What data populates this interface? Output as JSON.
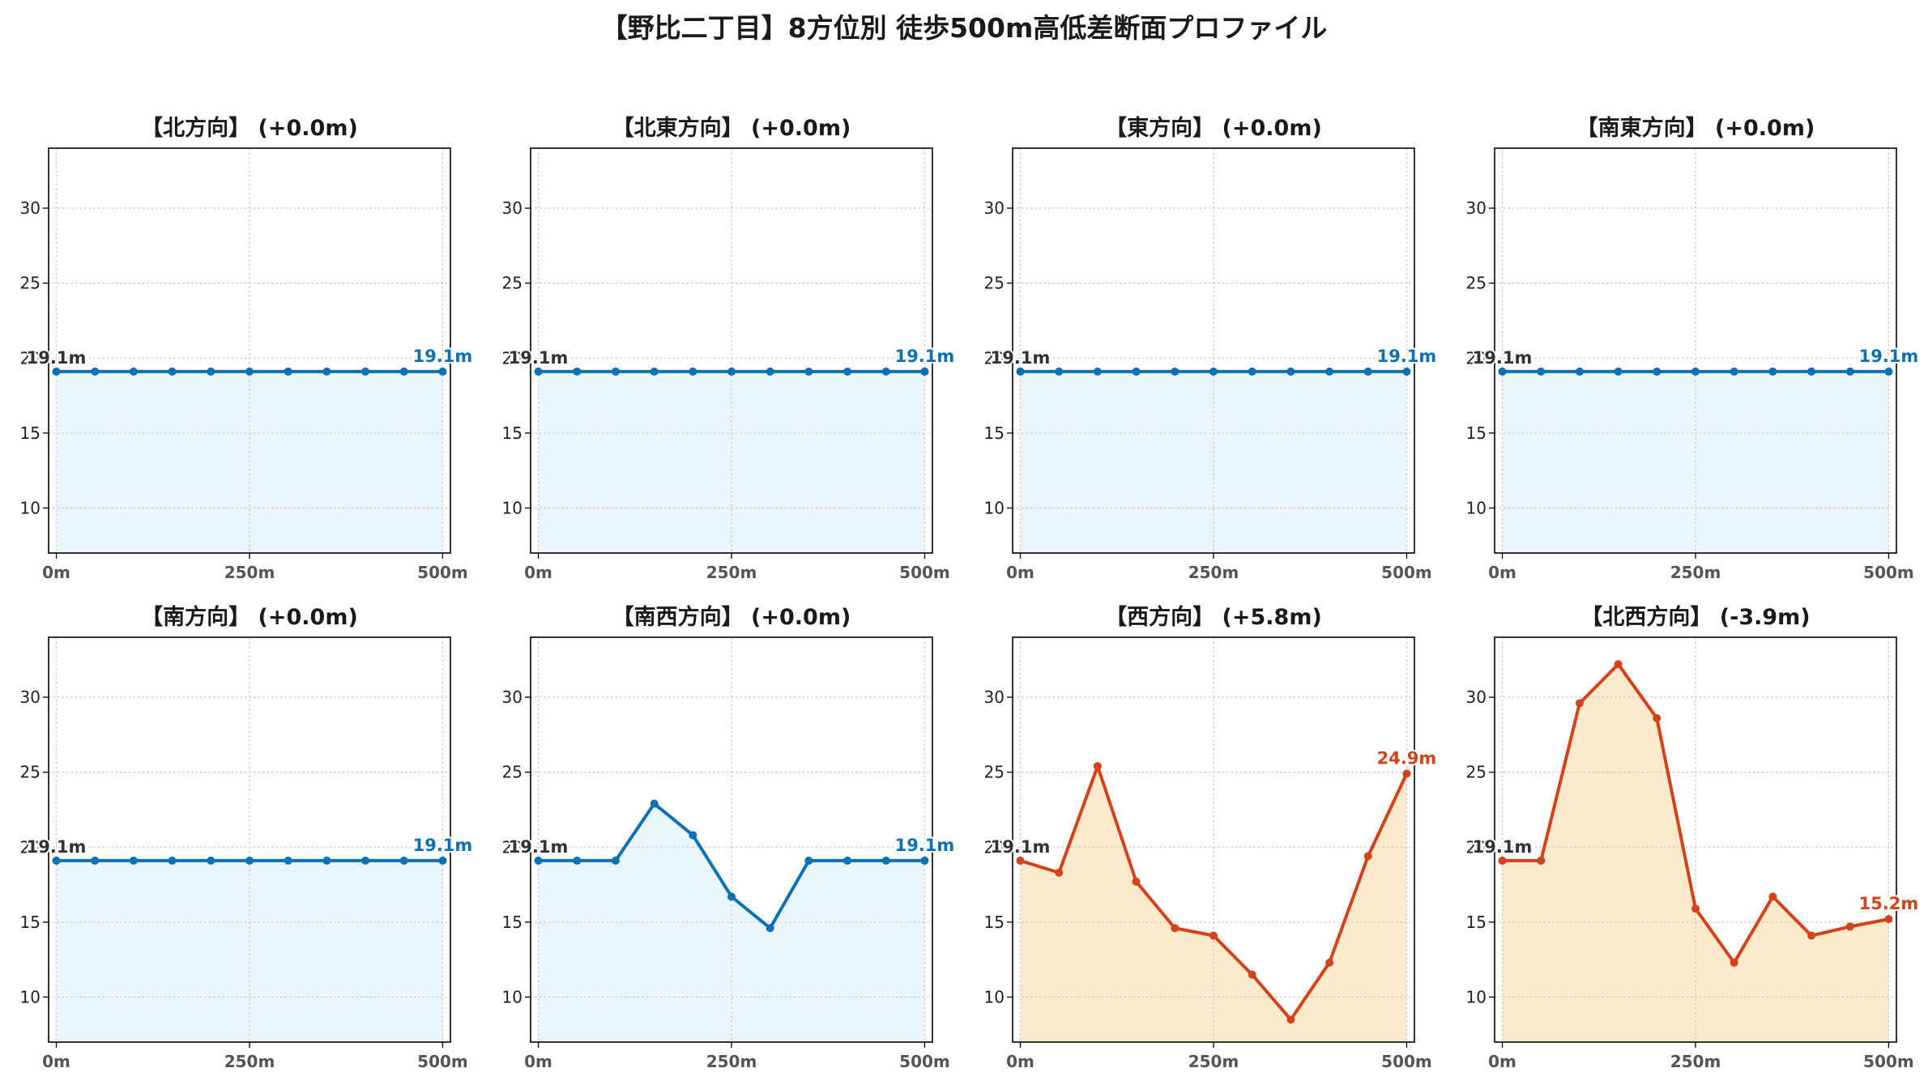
{
  "title": "【野比二丁目】8方位別 徒歩500m高低差断面プロファイル",
  "colors": {
    "flat_line": "#0a71b3",
    "flat_fill": "#eaf6fb",
    "hilly_line": "#d4421a",
    "hilly_fill": "#fde9cc",
    "start_label": "#333333",
    "grid": "#c8c8c8",
    "axes": "#000000",
    "tick_label": "#555555"
  },
  "chart_data": [
    {
      "type": "area",
      "title": "【北方向】 (+0.0m)",
      "x": [
        0,
        50,
        100,
        150,
        200,
        250,
        300,
        350,
        400,
        450,
        500
      ],
      "values": [
        19.1,
        19.1,
        19.1,
        19.1,
        19.1,
        19.1,
        19.1,
        19.1,
        19.1,
        19.1,
        19.1
      ],
      "start_label": "19.1m",
      "end_label": "19.1m",
      "style": "flat",
      "xticks": [
        "0m",
        "250m",
        "500m"
      ],
      "xtick_values": [
        0,
        250,
        500
      ],
      "yticks": [
        "10",
        "15",
        "20",
        "25",
        "30"
      ],
      "ytick_values": [
        10,
        15,
        20,
        25,
        30
      ],
      "xlim": [
        -10,
        510
      ],
      "ylim": [
        7,
        34
      ],
      "grid": true
    },
    {
      "type": "area",
      "title": "【北東方向】 (+0.0m)",
      "x": [
        0,
        50,
        100,
        150,
        200,
        250,
        300,
        350,
        400,
        450,
        500
      ],
      "values": [
        19.1,
        19.1,
        19.1,
        19.1,
        19.1,
        19.1,
        19.1,
        19.1,
        19.1,
        19.1,
        19.1
      ],
      "start_label": "19.1m",
      "end_label": "19.1m",
      "style": "flat",
      "xticks": [
        "0m",
        "250m",
        "500m"
      ],
      "xtick_values": [
        0,
        250,
        500
      ],
      "yticks": [
        "10",
        "15",
        "20",
        "25",
        "30"
      ],
      "ytick_values": [
        10,
        15,
        20,
        25,
        30
      ],
      "xlim": [
        -10,
        510
      ],
      "ylim": [
        7,
        34
      ],
      "grid": true
    },
    {
      "type": "area",
      "title": "【東方向】 (+0.0m)",
      "x": [
        0,
        50,
        100,
        150,
        200,
        250,
        300,
        350,
        400,
        450,
        500
      ],
      "values": [
        19.1,
        19.1,
        19.1,
        19.1,
        19.1,
        19.1,
        19.1,
        19.1,
        19.1,
        19.1,
        19.1
      ],
      "start_label": "19.1m",
      "end_label": "19.1m",
      "style": "flat",
      "xticks": [
        "0m",
        "250m",
        "500m"
      ],
      "xtick_values": [
        0,
        250,
        500
      ],
      "yticks": [
        "10",
        "15",
        "20",
        "25",
        "30"
      ],
      "ytick_values": [
        10,
        15,
        20,
        25,
        30
      ],
      "xlim": [
        -10,
        510
      ],
      "ylim": [
        7,
        34
      ],
      "grid": true
    },
    {
      "type": "area",
      "title": "【南東方向】 (+0.0m)",
      "x": [
        0,
        50,
        100,
        150,
        200,
        250,
        300,
        350,
        400,
        450,
        500
      ],
      "values": [
        19.1,
        19.1,
        19.1,
        19.1,
        19.1,
        19.1,
        19.1,
        19.1,
        19.1,
        19.1,
        19.1
      ],
      "start_label": "19.1m",
      "end_label": "19.1m",
      "style": "flat",
      "xticks": [
        "0m",
        "250m",
        "500m"
      ],
      "xtick_values": [
        0,
        250,
        500
      ],
      "yticks": [
        "10",
        "15",
        "20",
        "25",
        "30"
      ],
      "ytick_values": [
        10,
        15,
        20,
        25,
        30
      ],
      "xlim": [
        -10,
        510
      ],
      "ylim": [
        7,
        34
      ],
      "grid": true
    },
    {
      "type": "area",
      "title": "【南方向】 (+0.0m)",
      "x": [
        0,
        50,
        100,
        150,
        200,
        250,
        300,
        350,
        400,
        450,
        500
      ],
      "values": [
        19.1,
        19.1,
        19.1,
        19.1,
        19.1,
        19.1,
        19.1,
        19.1,
        19.1,
        19.1,
        19.1
      ],
      "start_label": "19.1m",
      "end_label": "19.1m",
      "style": "flat",
      "xticks": [
        "0m",
        "250m",
        "500m"
      ],
      "xtick_values": [
        0,
        250,
        500
      ],
      "yticks": [
        "10",
        "15",
        "20",
        "25",
        "30"
      ],
      "ytick_values": [
        10,
        15,
        20,
        25,
        30
      ],
      "xlim": [
        -10,
        510
      ],
      "ylim": [
        7,
        34
      ],
      "grid": true
    },
    {
      "type": "area",
      "title": "【南西方向】 (+0.0m)",
      "x": [
        0,
        50,
        100,
        150,
        200,
        250,
        300,
        350,
        400,
        450,
        500
      ],
      "values": [
        19.1,
        19.1,
        19.1,
        22.9,
        20.8,
        16.7,
        14.6,
        19.1,
        19.1,
        19.1,
        19.1
      ],
      "start_label": "19.1m",
      "end_label": "19.1m",
      "style": "flat",
      "xticks": [
        "0m",
        "250m",
        "500m"
      ],
      "xtick_values": [
        0,
        250,
        500
      ],
      "yticks": [
        "10",
        "15",
        "20",
        "25",
        "30"
      ],
      "ytick_values": [
        10,
        15,
        20,
        25,
        30
      ],
      "xlim": [
        -10,
        510
      ],
      "ylim": [
        7,
        34
      ],
      "grid": true
    },
    {
      "type": "area",
      "title": "【西方向】 (+5.8m)",
      "x": [
        0,
        50,
        100,
        150,
        200,
        250,
        300,
        350,
        400,
        450,
        500
      ],
      "values": [
        19.1,
        18.3,
        25.4,
        17.7,
        14.6,
        14.1,
        11.5,
        8.5,
        12.3,
        19.4,
        24.9
      ],
      "start_label": "19.1m",
      "end_label": "24.9m",
      "style": "hilly",
      "xticks": [
        "0m",
        "250m",
        "500m"
      ],
      "xtick_values": [
        0,
        250,
        500
      ],
      "yticks": [
        "10",
        "15",
        "20",
        "25",
        "30"
      ],
      "ytick_values": [
        10,
        15,
        20,
        25,
        30
      ],
      "xlim": [
        -10,
        510
      ],
      "ylim": [
        7,
        34
      ],
      "grid": true
    },
    {
      "type": "area",
      "title": "【北西方向】 (-3.9m)",
      "x": [
        0,
        50,
        100,
        150,
        200,
        250,
        300,
        350,
        400,
        450,
        500
      ],
      "values": [
        19.1,
        19.1,
        29.6,
        32.2,
        28.6,
        15.9,
        12.3,
        16.7,
        14.1,
        14.7,
        15.2
      ],
      "start_label": "19.1m",
      "end_label": "15.2m",
      "style": "hilly",
      "xticks": [
        "0m",
        "250m",
        "500m"
      ],
      "xtick_values": [
        0,
        250,
        500
      ],
      "yticks": [
        "10",
        "15",
        "20",
        "25",
        "30"
      ],
      "ytick_values": [
        10,
        15,
        20,
        25,
        30
      ],
      "xlim": [
        -10,
        510
      ],
      "ylim": [
        7,
        34
      ],
      "grid": true
    }
  ]
}
